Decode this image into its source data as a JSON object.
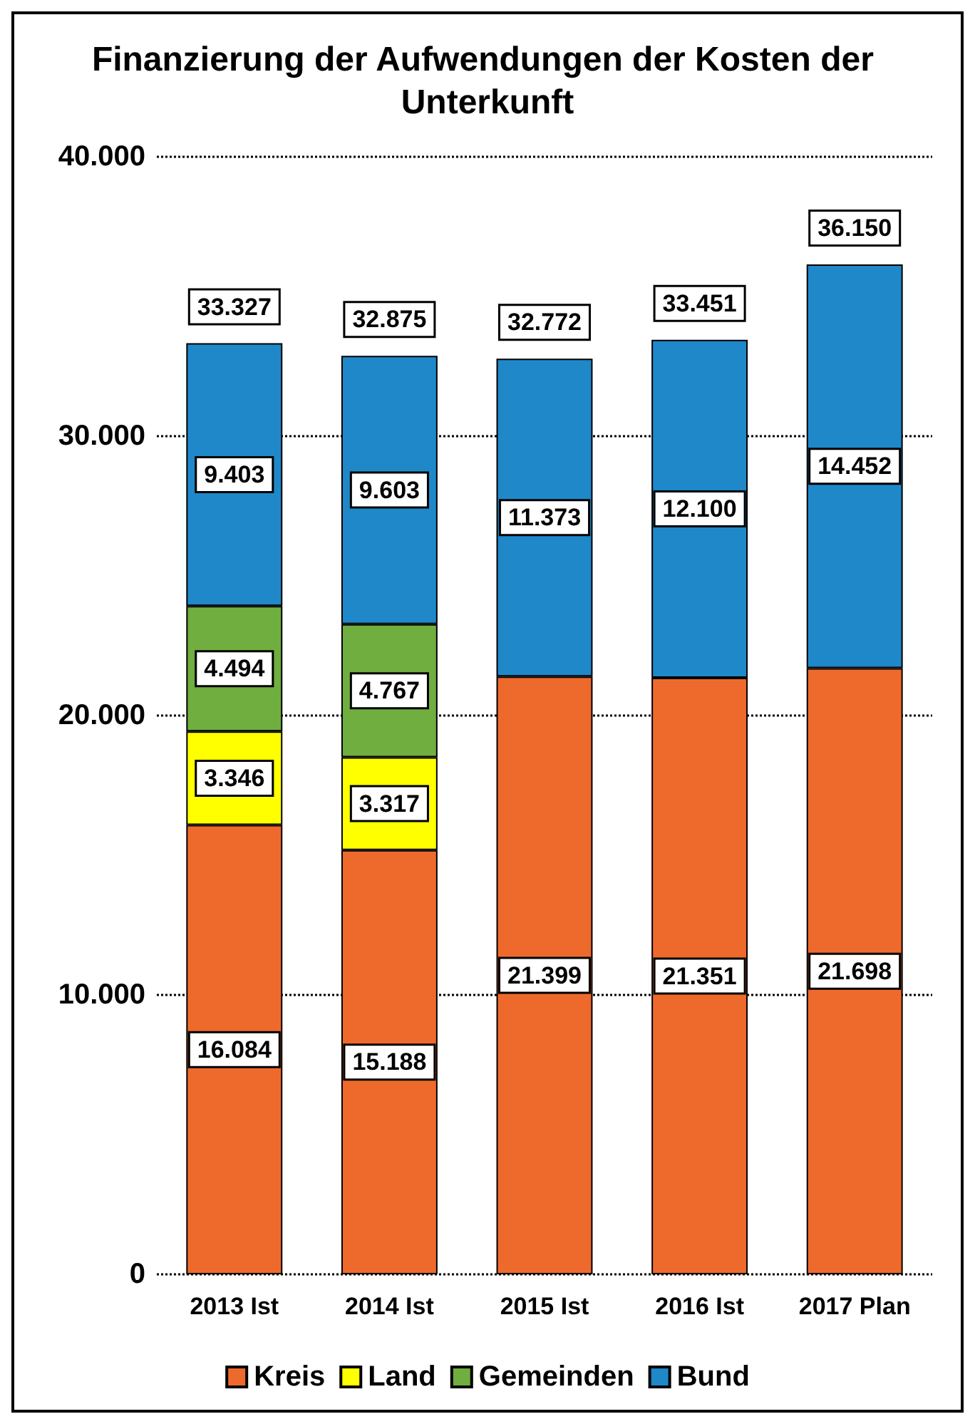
{
  "chart_data": {
    "type": "bar",
    "title": "Finanzierung der Aufwendungen der Kosten der Unterkunft",
    "categories": [
      "2013 Ist",
      "2014 Ist",
      "2015 Ist",
      "2016 Ist",
      "2017 Plan"
    ],
    "stacked": true,
    "series": [
      {
        "name": "Kreis",
        "color": "#ee6a2c",
        "values": [
          16084,
          15188,
          21399,
          21351,
          21698
        ],
        "value_labels": [
          "16.084",
          "15.188",
          "21.399",
          "21.351",
          "21.698"
        ]
      },
      {
        "name": "Land",
        "color": "#ffff00",
        "values": [
          3346,
          3317,
          null,
          null,
          null
        ],
        "value_labels": [
          "3.346",
          "3.317",
          null,
          null,
          null
        ]
      },
      {
        "name": "Gemeinden",
        "color": "#6fae3f",
        "values": [
          4494,
          4767,
          null,
          null,
          null
        ],
        "value_labels": [
          "4.494",
          "4.767",
          null,
          null,
          null
        ]
      },
      {
        "name": "Bund",
        "color": "#1e88c9",
        "values": [
          9403,
          9603,
          11373,
          12100,
          14452
        ],
        "value_labels": [
          "9.403",
          "9.603",
          "11.373",
          "12.100",
          "14.452"
        ]
      }
    ],
    "totals": [
      "33.327",
      "32.875",
      "32.772",
      "33.451",
      "36.150"
    ],
    "ylim": [
      0,
      40000
    ],
    "yticks": [
      {
        "value": 0,
        "label": "0"
      },
      {
        "value": 10000,
        "label": "10.000"
      },
      {
        "value": 20000,
        "label": "20.000"
      },
      {
        "value": 30000,
        "label": "30.000"
      },
      {
        "value": 40000,
        "label": "40.000"
      }
    ],
    "grid": "y",
    "legend": "bottom"
  }
}
